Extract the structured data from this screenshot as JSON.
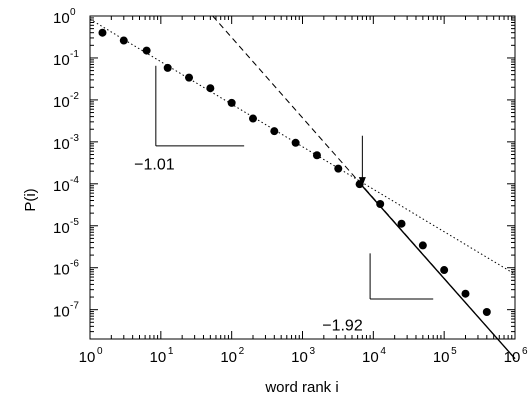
{
  "chart_data": {
    "type": "scatter",
    "title": "",
    "xlabel": "word rank i",
    "ylabel": "P(i)",
    "xscale": "log",
    "yscale": "log",
    "xlim": [
      1,
      1000000
    ],
    "ylim": [
      2e-08,
      1
    ],
    "grid": false,
    "x_ticks": [
      {
        "base": "10",
        "exp": "0",
        "value": 1
      },
      {
        "base": "10",
        "exp": "1",
        "value": 10
      },
      {
        "base": "10",
        "exp": "2",
        "value": 100
      },
      {
        "base": "10",
        "exp": "3",
        "value": 1000
      },
      {
        "base": "10",
        "exp": "4",
        "value": 10000
      },
      {
        "base": "10",
        "exp": "5",
        "value": 100000
      },
      {
        "base": "10",
        "exp": "6",
        "value": 1000000
      }
    ],
    "y_ticks": [
      {
        "base": "10",
        "exp": "0",
        "value": 1
      },
      {
        "base": "10",
        "exp": "-1",
        "value": 0.1
      },
      {
        "base": "10",
        "exp": "-2",
        "value": 0.01
      },
      {
        "base": "10",
        "exp": "-3",
        "value": 0.001
      },
      {
        "base": "10",
        "exp": "-4",
        "value": 0.0001
      },
      {
        "base": "10",
        "exp": "-5",
        "value": 1e-05
      },
      {
        "base": "10",
        "exp": "-6",
        "value": 1e-06
      },
      {
        "base": "10",
        "exp": "-7",
        "value": 1e-07
      }
    ],
    "points": {
      "x": [
        1.5,
        3,
        6.3,
        12.5,
        25,
        50,
        100,
        200,
        400,
        800,
        1600,
        3200,
        6400,
        12500,
        25000,
        50000,
        100000,
        200000,
        400000
      ],
      "y": [
        0.4,
        0.26,
        0.15,
        0.058,
        0.034,
        0.019,
        0.0085,
        0.0036,
        0.0018,
        0.00095,
        0.00048,
        0.00023,
        9.8e-05,
        3.3e-05,
        1.12e-05,
        3.4e-06,
        8.8e-07,
        2.4e-07,
        8.8e-08
      ]
    },
    "fit_lines": [
      {
        "style": "dotted",
        "slope": -1.01,
        "x": [
          1,
          1000000
        ],
        "y": [
          0.84,
          7e-07
        ]
      },
      {
        "style": "dashed",
        "slope": -1.92,
        "x": [
          54,
          1000000
        ],
        "y": [
          1,
          6.8e-09
        ]
      },
      {
        "style": "solid",
        "slope": -1.92,
        "x": [
          7000,
          1000000
        ],
        "y": [
          8.8e-05,
          6.8e-09
        ]
      }
    ],
    "annotations": [
      {
        "text": "−1.01",
        "slope": -1.01
      },
      {
        "text": "−1.92",
        "slope": -1.92
      }
    ],
    "arrow": {
      "x": 7000,
      "y_from": 0.0014,
      "y_to": 8.8e-05
    }
  }
}
